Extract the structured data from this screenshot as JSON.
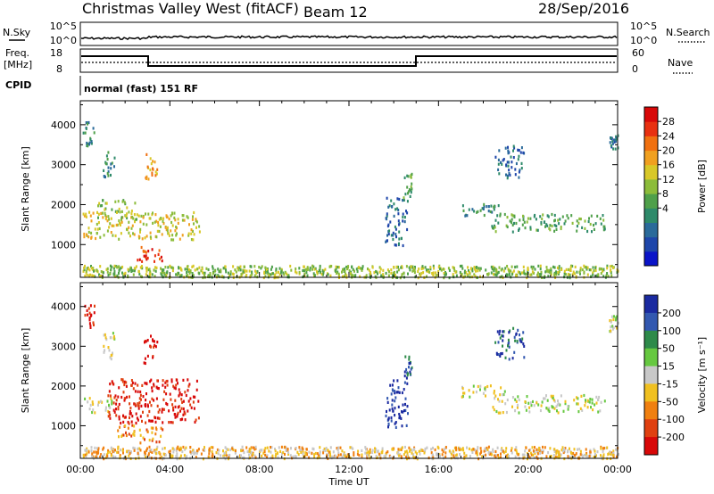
{
  "header": {
    "station": "Christmas Valley West (fitACF)",
    "beam": "Beam 12",
    "date": "28/Sep/2016"
  },
  "strip": {
    "nsky_label": "N.Sky",
    "nsearch_label": "N.Search",
    "noise_left_ticks": [
      "10^5",
      "10^0"
    ],
    "noise_right_ticks": [
      "10^5",
      "10^0"
    ],
    "freq_label": "Freq.",
    "freq_unit": "[MHz]",
    "freq_ticks": [
      "18",
      "8"
    ],
    "nave_label": "Nave",
    "nave_ticks": [
      "60",
      "0"
    ],
    "cpid_label": "CPID",
    "cpid_value": "normal (fast) 151 RF"
  },
  "chart_data": [
    {
      "type": "heatmap",
      "name": "power",
      "ylabel": "Slant Range [km]",
      "yticks": [
        1000,
        2000,
        3000,
        4000
      ],
      "ylim": [
        180,
        4600
      ],
      "xlim": [
        0,
        24
      ],
      "xticks": [
        "00:00",
        "04:00",
        "08:00",
        "12:00",
        "16:00",
        "20:00",
        "00:00"
      ],
      "colorbar": {
        "label": "Power [dB]",
        "ticks": [
          "28",
          "24",
          "20",
          "16",
          "12",
          "8",
          "4"
        ],
        "colors": [
          "#0a14c8",
          "#1e46aa",
          "#2a6a9a",
          "#2e8a6a",
          "#4fa04a",
          "#8cbc3a",
          "#d8c828",
          "#f0a020",
          "#f07010",
          "#e83010",
          "#d80808"
        ]
      },
      "regions": [
        {
          "t0": 0.1,
          "t1": 24.0,
          "r0": 200,
          "r1": 500,
          "level": 5
        },
        {
          "t0": 0.1,
          "t1": 5.3,
          "r0": 1150,
          "r1": 1850,
          "level": 6
        },
        {
          "t0": 0.7,
          "t1": 2.6,
          "r0": 1650,
          "r1": 2150,
          "level": 5
        },
        {
          "t0": 2.5,
          "t1": 3.7,
          "r0": 600,
          "r1": 1000,
          "level": 9
        },
        {
          "t0": 1.0,
          "t1": 1.5,
          "r0": 2700,
          "r1": 3400,
          "level": 3
        },
        {
          "t0": 2.8,
          "t1": 3.4,
          "r0": 2600,
          "r1": 3300,
          "level": 7
        },
        {
          "t0": 0.1,
          "t1": 0.6,
          "r0": 3500,
          "r1": 4100,
          "level": 3
        },
        {
          "t0": 13.6,
          "t1": 14.6,
          "r0": 950,
          "r1": 2200,
          "level": 2
        },
        {
          "t0": 14.4,
          "t1": 14.8,
          "r0": 2200,
          "r1": 2800,
          "level": 4
        },
        {
          "t0": 18.3,
          "t1": 23.4,
          "r0": 1350,
          "r1": 1800,
          "level": 4
        },
        {
          "t0": 17.0,
          "t1": 19.0,
          "r0": 1750,
          "r1": 2050,
          "level": 3
        },
        {
          "t0": 18.5,
          "t1": 19.8,
          "r0": 2700,
          "r1": 3500,
          "level": 2
        },
        {
          "t0": 23.6,
          "t1": 24.0,
          "r0": 3400,
          "r1": 3800,
          "level": 2
        }
      ]
    },
    {
      "type": "heatmap",
      "name": "velocity",
      "ylabel": "Slant Range [km]",
      "yticks": [
        1000,
        2000,
        3000,
        4000
      ],
      "ylim": [
        180,
        4600
      ],
      "xlim": [
        0,
        24
      ],
      "xticks": [
        "00:00",
        "04:00",
        "08:00",
        "12:00",
        "16:00",
        "20:00",
        "00:00"
      ],
      "xlabel": "Time UT",
      "colorbar": {
        "label": "Velocity [m s⁻¹]",
        "ticks": [
          "200",
          "100",
          "50",
          "15",
          "-15",
          "-50",
          "-100",
          "-200"
        ],
        "colors": [
          "#1a2aa0",
          "#3258b0",
          "#2e8a4a",
          "#66c840",
          "#c8c8c8",
          "#f0c020",
          "#f08010",
          "#e04010",
          "#d80808"
        ]
      },
      "regions": [
        {
          "t0": 0.1,
          "t1": 24.0,
          "r0": 200,
          "r1": 500,
          "level": 5
        },
        {
          "t0": 0.1,
          "t1": 1.4,
          "r0": 1350,
          "r1": 1750,
          "level": 4
        },
        {
          "t0": 1.2,
          "t1": 5.3,
          "r0": 1100,
          "r1": 2200,
          "level": 8
        },
        {
          "t0": 2.5,
          "t1": 3.7,
          "r0": 600,
          "r1": 1000,
          "level": 6
        },
        {
          "t0": 1.5,
          "t1": 2.4,
          "r0": 750,
          "r1": 1100,
          "level": 6
        },
        {
          "t0": 1.0,
          "t1": 1.5,
          "r0": 2700,
          "r1": 3400,
          "level": 4
        },
        {
          "t0": 2.8,
          "t1": 3.4,
          "r0": 2600,
          "r1": 3300,
          "level": 8
        },
        {
          "t0": 0.1,
          "t1": 0.6,
          "r0": 3500,
          "r1": 4100,
          "level": 8
        },
        {
          "t0": 13.6,
          "t1": 14.6,
          "r0": 950,
          "r1": 2200,
          "level": 0
        },
        {
          "t0": 14.4,
          "t1": 14.8,
          "r0": 2200,
          "r1": 2800,
          "level": 1
        },
        {
          "t0": 18.3,
          "t1": 23.4,
          "r0": 1350,
          "r1": 1800,
          "level": 4
        },
        {
          "t0": 17.0,
          "t1": 19.0,
          "r0": 1750,
          "r1": 2050,
          "level": 4
        },
        {
          "t0": 18.5,
          "t1": 19.8,
          "r0": 2700,
          "r1": 3500,
          "level": 1
        },
        {
          "t0": 23.6,
          "t1": 24.0,
          "r0": 3400,
          "r1": 3800,
          "level": 4
        }
      ]
    }
  ]
}
